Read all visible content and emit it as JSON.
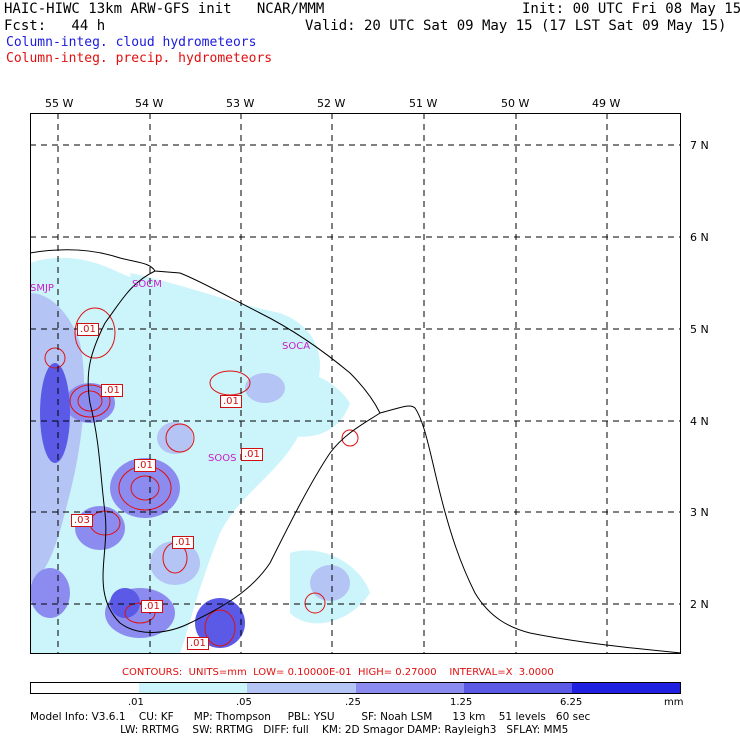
{
  "header": {
    "line1_left": "HAIC-HIWC 13km ARW-GFS init   NCAR/MMM",
    "line1_right": "Init: 00 UTC Fri 08 May 15",
    "line2_left": "Fcst:   44 h",
    "line2_right": "Valid: 20 UTC Sat 09 May 15 (17 LST Sat 09 May 15)",
    "field1": "Column-integ. cloud hydrometeors",
    "field2": "Column-integ. precip. hydrometeors"
  },
  "colors": {
    "cloud_field": "#1a1adc",
    "precip_field": "#e01010",
    "station": "#c81ec8",
    "shade_levels": [
      "#ffffff",
      "#ccf4fb",
      "#b4c4f4",
      "#8c8cf0",
      "#5a5ae6",
      "#2020e0"
    ]
  },
  "axes": {
    "longitudes": [
      "55 W",
      "54 W",
      "53 W",
      "52 W",
      "51 W",
      "50 W",
      "49 W"
    ],
    "latitudes": [
      "7 N",
      "6 N",
      "5 N",
      "4 N",
      "3 N",
      "2 N"
    ]
  },
  "stations": [
    "SMJP",
    "SOCM",
    "SOCA",
    "SOOS"
  ],
  "contour_labels": [
    ".01",
    ".01",
    ".01",
    ".01",
    ".01",
    ".03",
    ".01",
    ".01",
    ".01"
  ],
  "contour_info": {
    "label": "CONTOURS:  UNITS=mm  LOW= 0.10000E-01  HIGH= 0.27000    INTERVAL=X  3.0000"
  },
  "legend": {
    "ticks": [
      ".01",
      ".05",
      ".25",
      "1.25",
      "6.25"
    ],
    "units": "mm"
  },
  "model_info": {
    "line1": "Model Info: V3.6.1    CU: KF      MP: Thompson     PBL: YSU        SF: Noah LSM      13 km    51 levels   60 sec",
    "line2": "                           LW: RRTMG    SW: RRTMG   DIFF: full    KM: 2D Smagor DAMP: Rayleigh3   SFLAY: MM5"
  }
}
